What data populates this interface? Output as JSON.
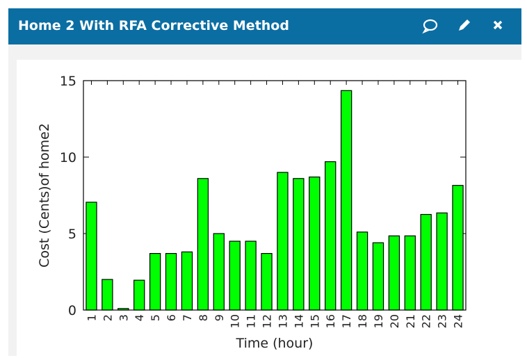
{
  "header": {
    "title": "Home 2 With RFA Corrective Method"
  },
  "chart_data": {
    "type": "bar",
    "x_label": "Time (hour)",
    "y_label": "Cost (Cents)of home2",
    "categories": [
      "1",
      "2",
      "3",
      "4",
      "5",
      "6",
      "7",
      "8",
      "9",
      "10",
      "11",
      "12",
      "13",
      "14",
      "15",
      "16",
      "17",
      "18",
      "19",
      "20",
      "21",
      "22",
      "23",
      "24"
    ],
    "values": [
      7.05,
      2.0,
      0.1,
      1.95,
      3.7,
      3.7,
      3.8,
      8.6,
      5.0,
      4.5,
      4.5,
      3.7,
      9.0,
      8.6,
      8.7,
      9.7,
      14.35,
      5.1,
      4.4,
      4.85,
      4.85,
      6.25,
      6.35,
      8.15
    ],
    "color": "#00ff00",
    "ylim": [
      0,
      15
    ],
    "yticks": [
      0,
      5,
      10,
      15
    ]
  }
}
